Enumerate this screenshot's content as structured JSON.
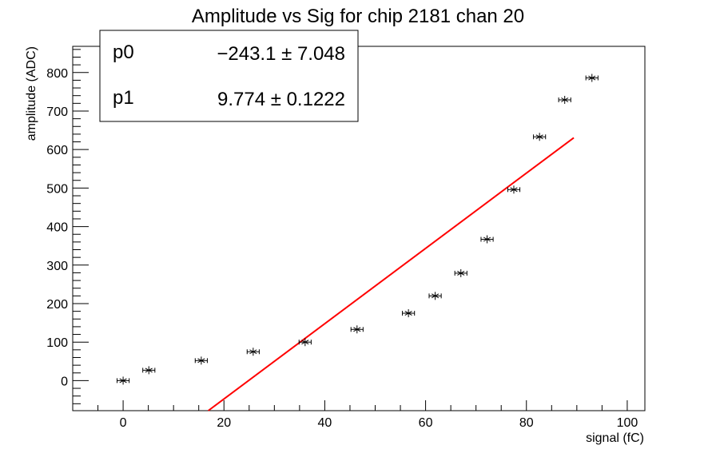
{
  "chart_data": {
    "type": "scatter",
    "title": "Amplitude vs Sig for chip 2181 chan 20",
    "xlabel": "signal (fC)",
    "ylabel": "amplitude (ADC)",
    "xlim": [
      -10,
      103.5
    ],
    "ylim": [
      -78,
      868
    ],
    "xticks": [
      0,
      20,
      40,
      60,
      80,
      100
    ],
    "yticks": [
      0,
      100,
      200,
      300,
      400,
      500,
      600,
      700,
      800
    ],
    "xtick_labels": [
      "0",
      "20",
      "40",
      "60",
      "80",
      "100"
    ],
    "ytick_labels": [
      "0",
      "100",
      "200",
      "300",
      "400",
      "500",
      "600",
      "700",
      "800"
    ],
    "grid": false,
    "series": [
      {
        "points": [
          {
            "x": 0,
            "y": 0
          },
          {
            "x": 5.1,
            "y": 27
          },
          {
            "x": 15.5,
            "y": 52
          },
          {
            "x": 25.8,
            "y": 75
          },
          {
            "x": 36.1,
            "y": 100
          },
          {
            "x": 46.4,
            "y": 133
          },
          {
            "x": 56.6,
            "y": 175
          },
          {
            "x": 61.9,
            "y": 220
          },
          {
            "x": 67.0,
            "y": 279
          },
          {
            "x": 72.2,
            "y": 367
          },
          {
            "x": 77.5,
            "y": 496
          },
          {
            "x": 82.6,
            "y": 633
          },
          {
            "x": 87.6,
            "y": 729
          },
          {
            "x": 93.0,
            "y": 786
          }
        ],
        "x_error": 1.2,
        "marker": "star",
        "color": "#000000"
      }
    ],
    "fit": {
      "type": "line",
      "color": "#ff0000",
      "x_range": [
        16.6,
        89.4
      ],
      "p0": -243.1,
      "p1": 9.774
    },
    "stats_box": {
      "rows": [
        {
          "name": "p0",
          "value": "−243.1 ± 7.048"
        },
        {
          "name": "p1",
          "value": "9.774 ± 0.1222"
        }
      ]
    }
  }
}
